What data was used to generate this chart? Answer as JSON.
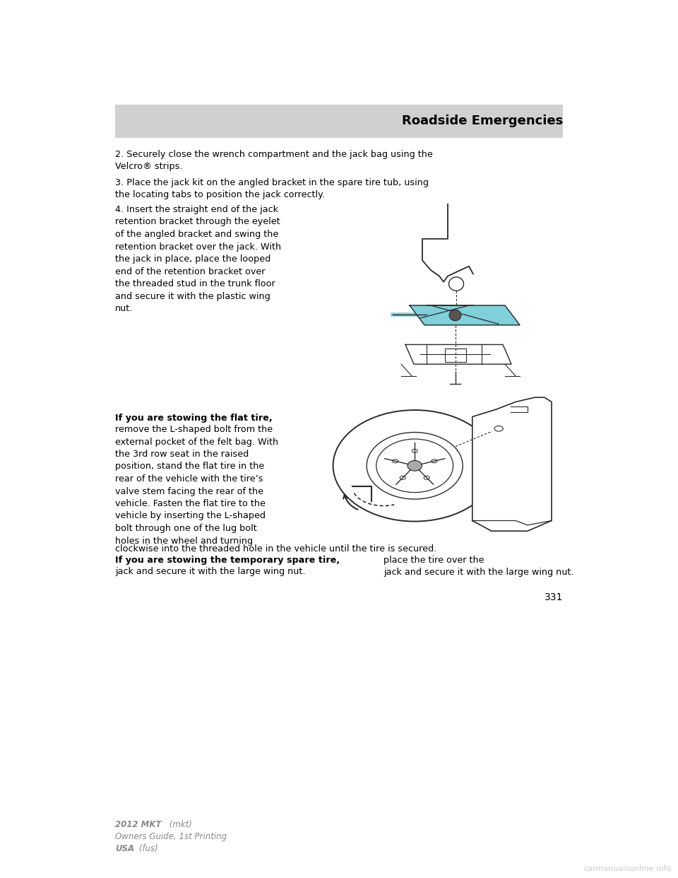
{
  "page_width": 9.6,
  "page_height": 12.42,
  "dpi": 100,
  "background_color": "#ffffff",
  "header_bg_color": "#d0d0d0",
  "header_text": "Roadside Emergencies",
  "header_text_color": "#000000",
  "header_font_size": 13,
  "body_font_size": 9.2,
  "body_text_color": "#000000",
  "page_number": "331",
  "footer_color": "#888888",
  "watermark_color": "#cccccc",
  "teal_color": "#7fd0d8",
  "para2": "2. Securely close the wrench compartment and the jack bag using the\nVelcro® strips.",
  "para3": "3. Place the jack kit on the angled bracket in the spare tire tub, using\nthe locating tabs to position the jack correctly.",
  "para4": "4. Insert the straight end of the jack\nretention bracket through the eyelet\nof the angled bracket and swing the\nretention bracket over the jack. With\nthe jack in place, place the looped\nend of the retention bracket over\nthe threaded stud in the trunk floor\nand secure it with the plastic wing\nnut.",
  "flat_bold": "If you are stowing the flat tire,",
  "flat_rest": "remove the L-shaped bolt from the\nexternal pocket of the felt bag. With\nthe 3rd row seat in the raised\nposition, stand the flat tire in the\nrear of the vehicle with the tire’s\nvalve stem facing the rear of the\nvehicle. Fasten the flat tire to the\nvehicle by inserting the L-shaped\nbolt through one of the lug bolt\nholes in the wheel and turning",
  "flat_fullline": "clockwise into the threaded hole in the vehicle until the tire is secured.",
  "spare_bold": "If you are stowing the temporary spare tire,",
  "spare_rest": " place the tire over the\njack and secure it with the large wing nut.",
  "footer1_bold": "2012 MKT",
  "footer1_italic": " (mkt)",
  "footer2": "Owners Guide, 1st Printing",
  "footer3_bold": "USA",
  "footer3_italic": " (fus)",
  "watermark": "carmanualsonline.info"
}
